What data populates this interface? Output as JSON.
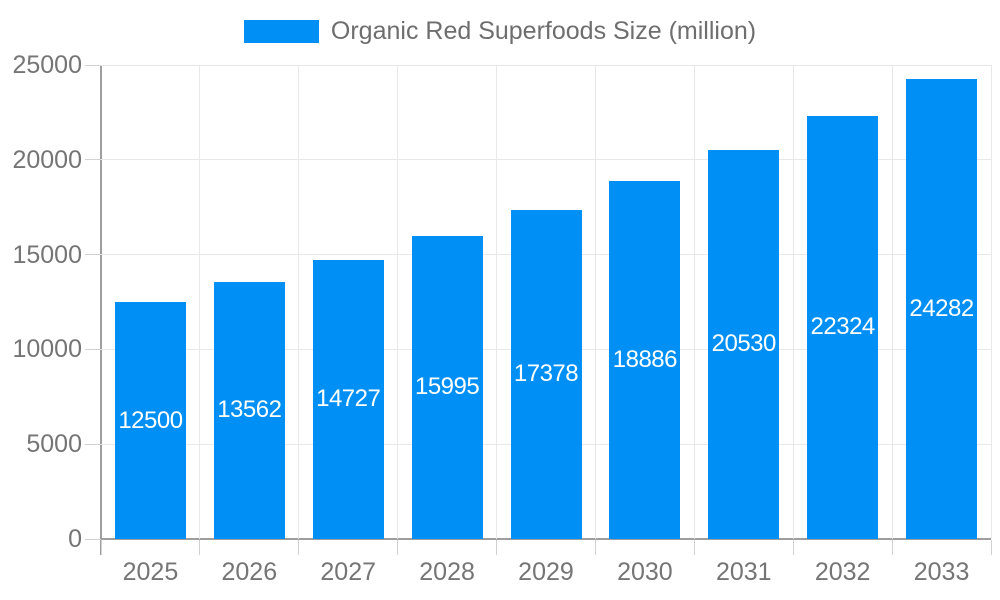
{
  "chart_data": {
    "type": "bar",
    "title": "",
    "legend": {
      "label": "Organic Red Superfoods Size (million)",
      "position": "top"
    },
    "categories": [
      "2025",
      "2026",
      "2027",
      "2028",
      "2029",
      "2030",
      "2031",
      "2032",
      "2033"
    ],
    "series": [
      {
        "name": "Organic Red Superfoods Size (million)",
        "values": [
          12500,
          13562,
          14727,
          15995,
          17378,
          18886,
          20530,
          22324,
          24282
        ]
      }
    ],
    "value_labels": [
      "12500",
      "13562",
      "14727",
      "15995",
      "17378",
      "18886",
      "20530",
      "22324",
      "24282"
    ],
    "xlabel": "",
    "ylabel": "",
    "ylim": [
      0,
      25000
    ],
    "y_ticks": [
      0,
      5000,
      10000,
      15000,
      20000,
      25000
    ],
    "y_tick_labels": [
      "0",
      "5000",
      "10000",
      "15000",
      "20000",
      "25000"
    ],
    "grid": true,
    "legend_position": "top",
    "colors": {
      "bar": "#008ff5",
      "value_label_text": "#ffffff",
      "axis_text": "#757575",
      "legend_text": "#6e6e6e",
      "axis_line": "#9e9e9e",
      "gridline": "#e8e8e8",
      "tick": "#d2d2d2",
      "background": "#ffffff"
    }
  }
}
